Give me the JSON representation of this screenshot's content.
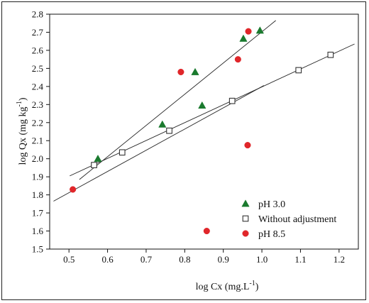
{
  "chart_data": {
    "type": "scatter",
    "xlabel_main": "log Cx (mg.L",
    "xlabel_sup": "-1",
    "xlabel_end": ")",
    "ylabel_main": "log Qx (mg kg",
    "ylabel_sup": "-1",
    "ylabel_end": ")",
    "xlim": [
      0.45,
      1.25
    ],
    "ylim": [
      1.5,
      2.8
    ],
    "xticks": [
      0.5,
      0.6,
      0.7,
      0.8,
      0.9,
      1.0,
      1.1,
      1.2
    ],
    "xtick_labels": [
      "0.5",
      "0.6",
      "0.7",
      "0.8",
      "0.9",
      "1.0",
      "1.1",
      "1.2"
    ],
    "yticks": [
      1.5,
      1.6,
      1.7,
      1.8,
      1.9,
      2.0,
      2.1,
      2.2,
      2.3,
      2.4,
      2.5,
      2.6,
      2.7,
      2.8
    ],
    "ytick_labels": [
      "1.5",
      "1.6",
      "1.7",
      "1.8",
      "1.9",
      "2.0",
      "2.1",
      "2.2",
      "2.3",
      "2.4",
      "2.5",
      "2.6",
      "2.7",
      "2.8"
    ],
    "grid": false,
    "legend_position": "bottom-right",
    "series": [
      {
        "name": "pH 3.0",
        "marker": "triangle",
        "color": "#1a7a2e",
        "x": [
          0.575,
          0.742,
          0.827,
          0.845,
          0.952,
          0.995
        ],
        "y": [
          2.0,
          2.19,
          2.48,
          2.295,
          2.665,
          2.71
        ]
      },
      {
        "name": "Without adjustment",
        "marker": "square-open",
        "color": "#333333",
        "x": [
          0.565,
          0.638,
          0.76,
          0.923,
          1.095,
          1.178
        ],
        "y": [
          1.965,
          2.035,
          2.155,
          2.32,
          2.49,
          2.575
        ]
      },
      {
        "name": "pH 8.5",
        "marker": "circle",
        "color": "#e0262a",
        "x": [
          0.51,
          0.79,
          0.857,
          0.938,
          0.963,
          0.965
        ],
        "y": [
          1.83,
          2.48,
          1.6,
          2.55,
          2.075,
          2.705
        ]
      }
    ],
    "fit_lines": [
      {
        "x": [
          0.527,
          1.036
        ],
        "y": [
          1.885,
          2.765
        ]
      },
      {
        "x": [
          0.502,
          1.24
        ],
        "y": [
          1.905,
          2.635
        ]
      },
      {
        "x": [
          0.46,
          1.005
        ],
        "y": [
          1.765,
          2.405
        ]
      }
    ]
  }
}
